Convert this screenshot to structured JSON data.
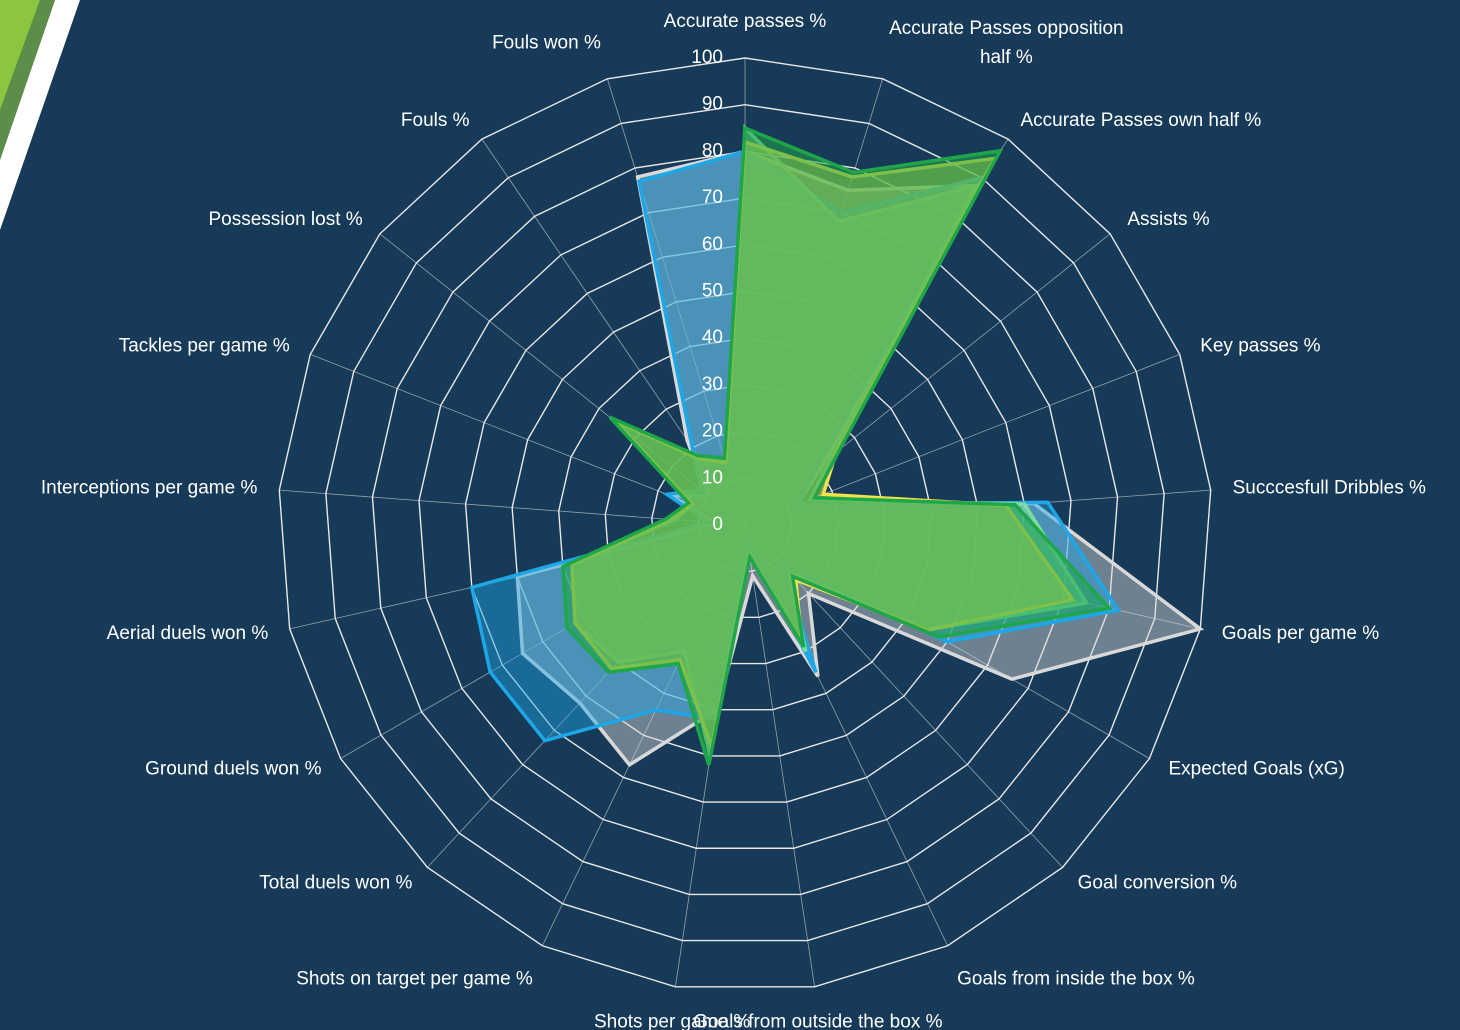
{
  "chart_data": {
    "type": "radar",
    "categories": [
      "Accurate passes %",
      "Accurate Passes opposition half %",
      "Accurate Passes own half %",
      "Assists %",
      "Key passes %",
      "Succcesfull Dribbles %",
      "Goals per game %",
      "Expected Goals (xG)",
      "Goal conversion %",
      "Goals from inside the box %",
      "Goals from outside the box %",
      "Shots per game %",
      "Shots on target per game %",
      "Total duels won %",
      "Ground duels won %",
      "Aerial duels won %",
      "Interceptions per game %",
      "Tackles per game %",
      "Possession lost %",
      "Fouls %",
      "Fouls won %"
    ],
    "series": [
      {
        "color": "#d9d9d9",
        "values": [
          80,
          75,
          88,
          22,
          12,
          62,
          100,
          66,
          20,
          36,
          11,
          40,
          57,
          52,
          55,
          50,
          6,
          17,
          10,
          22,
          78
        ]
      },
      {
        "color": "#1ea7e6",
        "values": [
          80,
          70,
          90,
          20,
          12,
          65,
          82,
          50,
          12,
          35,
          4,
          42,
          44,
          63,
          63,
          60,
          8,
          18,
          12,
          20,
          77
        ]
      },
      {
        "color": "#7fdca0",
        "values": [
          85,
          68,
          88,
          24,
          15,
          60,
          75,
          45,
          14,
          30,
          6,
          50,
          30,
          40,
          42,
          38,
          15,
          12,
          35,
          18,
          14
        ]
      },
      {
        "color": "#f2e34a",
        "values": [
          82,
          78,
          95,
          25,
          18,
          56,
          72,
          45,
          16,
          28,
          7,
          48,
          32,
          42,
          42,
          38,
          16,
          12,
          36,
          17,
          14
        ]
      },
      {
        "color": "#1fa64a",
        "values": [
          85,
          79,
          97,
          26,
          16,
          58,
          80,
          48,
          15,
          29,
          7,
          52,
          33,
          43,
          44,
          40,
          17,
          13,
          37,
          18,
          15
        ]
      }
    ],
    "rlim": [
      0,
      100
    ],
    "rticks": [
      0,
      10,
      20,
      30,
      40,
      50,
      60,
      70,
      80,
      90,
      100
    ],
    "grid": true
  }
}
